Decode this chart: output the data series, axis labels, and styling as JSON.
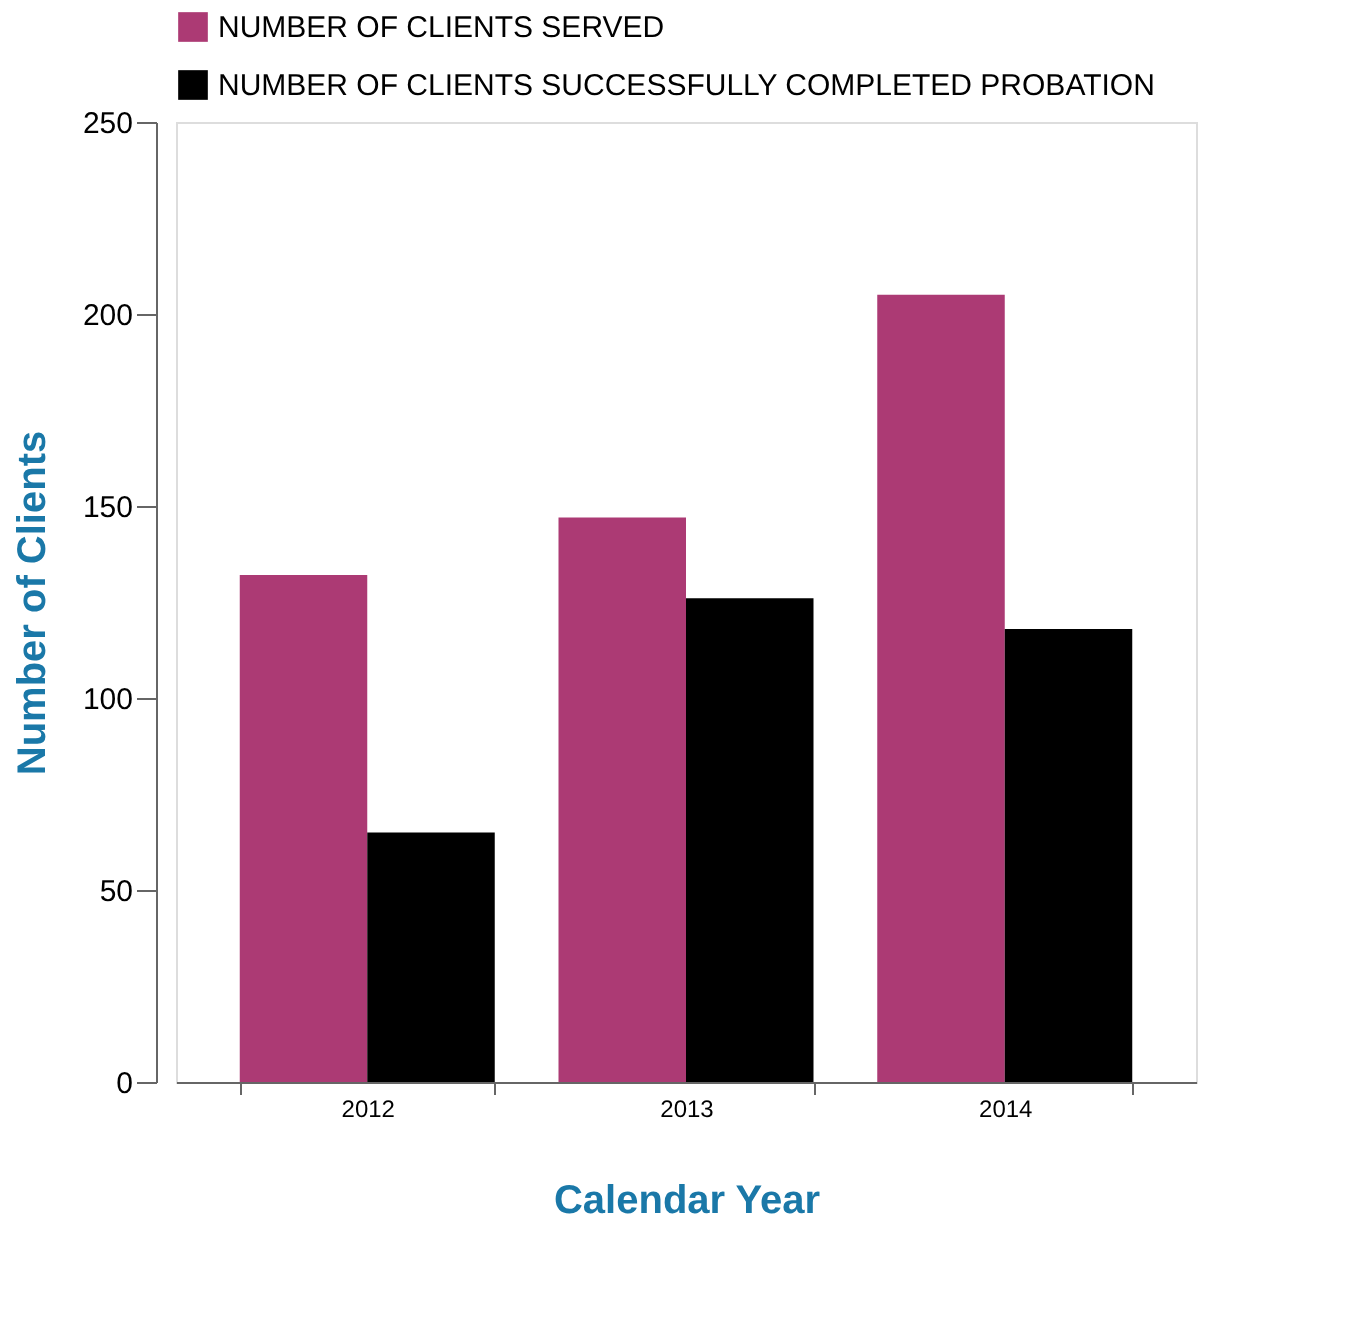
{
  "chart_data": {
    "type": "bar",
    "xlabel": "Calendar Year",
    "ylabel": "Number of Clients",
    "categories": [
      "2012",
      "2013",
      "2014"
    ],
    "series": [
      {
        "name": "NUMBER OF CLIENTS SERVED",
        "color": "#ac3a74",
        "values": [
          132,
          147,
          205
        ]
      },
      {
        "name": "NUMBER OF CLIENTS SUCCESSFULLY COMPLETED PROBATION",
        "color": "#000000",
        "values": [
          65,
          126,
          118
        ]
      }
    ],
    "ylim": [
      0,
      250
    ],
    "yticks": [
      0,
      50,
      100,
      150,
      200,
      250
    ],
    "grid": false,
    "legend": "top"
  }
}
